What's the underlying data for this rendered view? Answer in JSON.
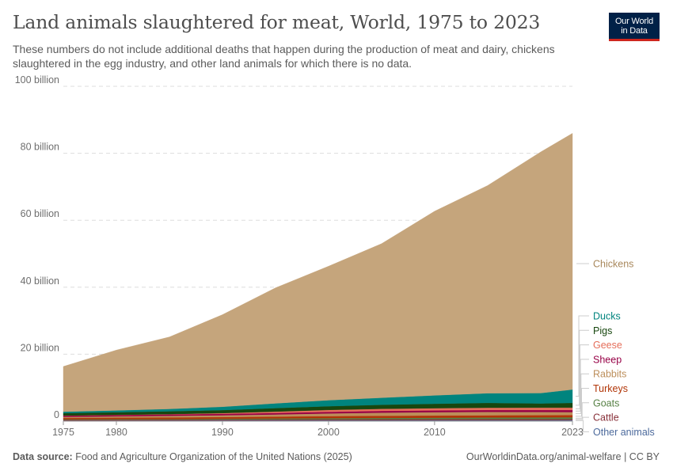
{
  "header": {
    "title": "Land animals slaughtered for meat, World, 1975 to 2023",
    "subtitle": "These numbers do not include additional deaths that happen during the production of meat and dairy, chickens slaughtered in the egg industry, and other land animals for which there is no data.",
    "logo_line1": "Our World",
    "logo_line2": "in Data"
  },
  "footer": {
    "source_label": "Data source:",
    "source_text": "Food and Agriculture Organization of the United Nations (2025)",
    "credit": "OurWorldinData.org/animal-welfare | CC BY"
  },
  "colors": {
    "logo_bg": "#002147",
    "logo_accent": "#ce261e"
  },
  "chart_data": {
    "type": "area",
    "stacked": true,
    "title": "Land animals slaughtered for meat, World, 1975 to 2023",
    "ylim": [
      0,
      100
    ],
    "y_unit": "billion",
    "yticks": [
      {
        "value": 0,
        "label": "0"
      },
      {
        "value": 20,
        "label": "20 billion"
      },
      {
        "value": 40,
        "label": "40 billion"
      },
      {
        "value": 60,
        "label": "60 billion"
      },
      {
        "value": 80,
        "label": "80 billion"
      },
      {
        "value": 100,
        "label": "100 billion"
      }
    ],
    "xticks": [
      {
        "value": 1975,
        "label": "1975"
      },
      {
        "value": 1980,
        "label": "1980"
      },
      {
        "value": 1990,
        "label": "1990"
      },
      {
        "value": 2000,
        "label": "2000"
      },
      {
        "value": 2010,
        "label": "2010"
      },
      {
        "value": 2023,
        "label": "2023"
      }
    ],
    "grid": true,
    "legend_position": "right",
    "x": [
      1975,
      1980,
      1985,
      1990,
      1995,
      2000,
      2005,
      2010,
      2015,
      2020,
      2023
    ],
    "series": [
      {
        "name": "Other animals",
        "color": "#4c6a9c",
        "values": [
          0.2,
          0.22,
          0.24,
          0.26,
          0.28,
          0.3,
          0.31,
          0.32,
          0.33,
          0.34,
          0.35
        ]
      },
      {
        "name": "Cattle",
        "color": "#883039",
        "values": [
          0.22,
          0.23,
          0.23,
          0.24,
          0.26,
          0.27,
          0.28,
          0.29,
          0.3,
          0.3,
          0.31
        ]
      },
      {
        "name": "Goats",
        "color": "#578145",
        "values": [
          0.16,
          0.18,
          0.2,
          0.23,
          0.28,
          0.33,
          0.38,
          0.42,
          0.45,
          0.49,
          0.5
        ]
      },
      {
        "name": "Turkeys",
        "color": "#b13507",
        "values": [
          0.4,
          0.43,
          0.46,
          0.49,
          0.56,
          0.62,
          0.64,
          0.66,
          0.67,
          0.66,
          0.65
        ]
      },
      {
        "name": "Rabbits",
        "color": "#bc8e5a",
        "values": [
          0.3,
          0.38,
          0.48,
          0.55,
          0.63,
          0.8,
          0.95,
          1.0,
          1.02,
          0.95,
          0.9
        ]
      },
      {
        "name": "Sheep",
        "color": "#970046",
        "values": [
          0.35,
          0.38,
          0.4,
          0.43,
          0.45,
          0.48,
          0.51,
          0.53,
          0.56,
          0.6,
          0.62
        ]
      },
      {
        "name": "Geese",
        "color": "#e56e5a",
        "values": [
          0.05,
          0.07,
          0.1,
          0.2,
          0.4,
          0.55,
          0.62,
          0.65,
          0.68,
          0.7,
          0.72
        ]
      },
      {
        "name": "Pigs",
        "color": "#18470f",
        "values": [
          0.7,
          0.78,
          0.85,
          0.9,
          1.05,
          1.12,
          1.21,
          1.33,
          1.44,
          1.25,
          1.4
        ]
      },
      {
        "name": "Ducks",
        "color": "#00847e",
        "values": [
          0.45,
          0.55,
          0.7,
          1.0,
          1.4,
          1.8,
          2.1,
          2.5,
          2.9,
          3.1,
          4.0
        ]
      },
      {
        "name": "Chickens",
        "color": "#c5a57c",
        "values": [
          13.5,
          18.0,
          21.5,
          27.5,
          34.5,
          40.0,
          46.0,
          55.0,
          62.0,
          72.0,
          76.5
        ]
      }
    ]
  }
}
